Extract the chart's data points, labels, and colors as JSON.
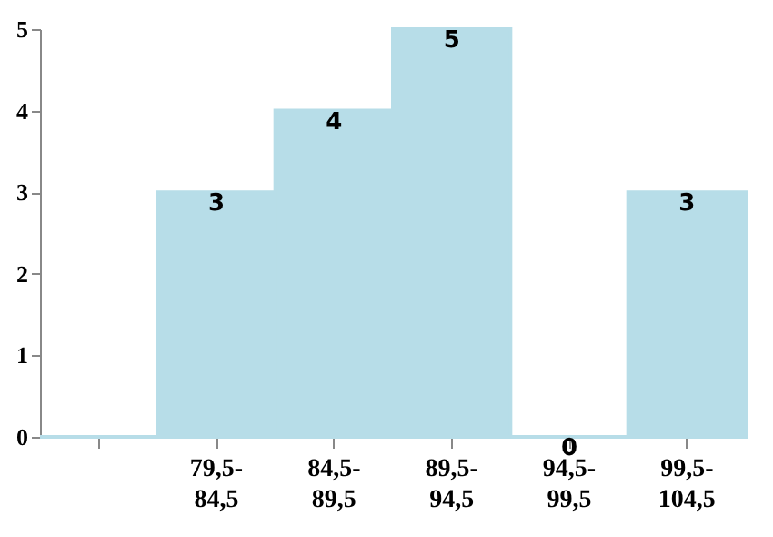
{
  "chart_data": {
    "type": "bar",
    "categories": [
      null,
      "79,5-84,5",
      "84,5-89,5",
      "89,5-94,5",
      "94,5-99,5",
      "99,5-104,5"
    ],
    "values": [
      0,
      3,
      4,
      5,
      0,
      3
    ],
    "value_labels": [
      null,
      "3",
      "4",
      "5",
      "0",
      "3"
    ],
    "color": "#b7dde8",
    "ylim": [
      0,
      5
    ],
    "yticks": [
      0,
      1,
      2,
      3,
      4,
      5
    ],
    "grid": false
  }
}
